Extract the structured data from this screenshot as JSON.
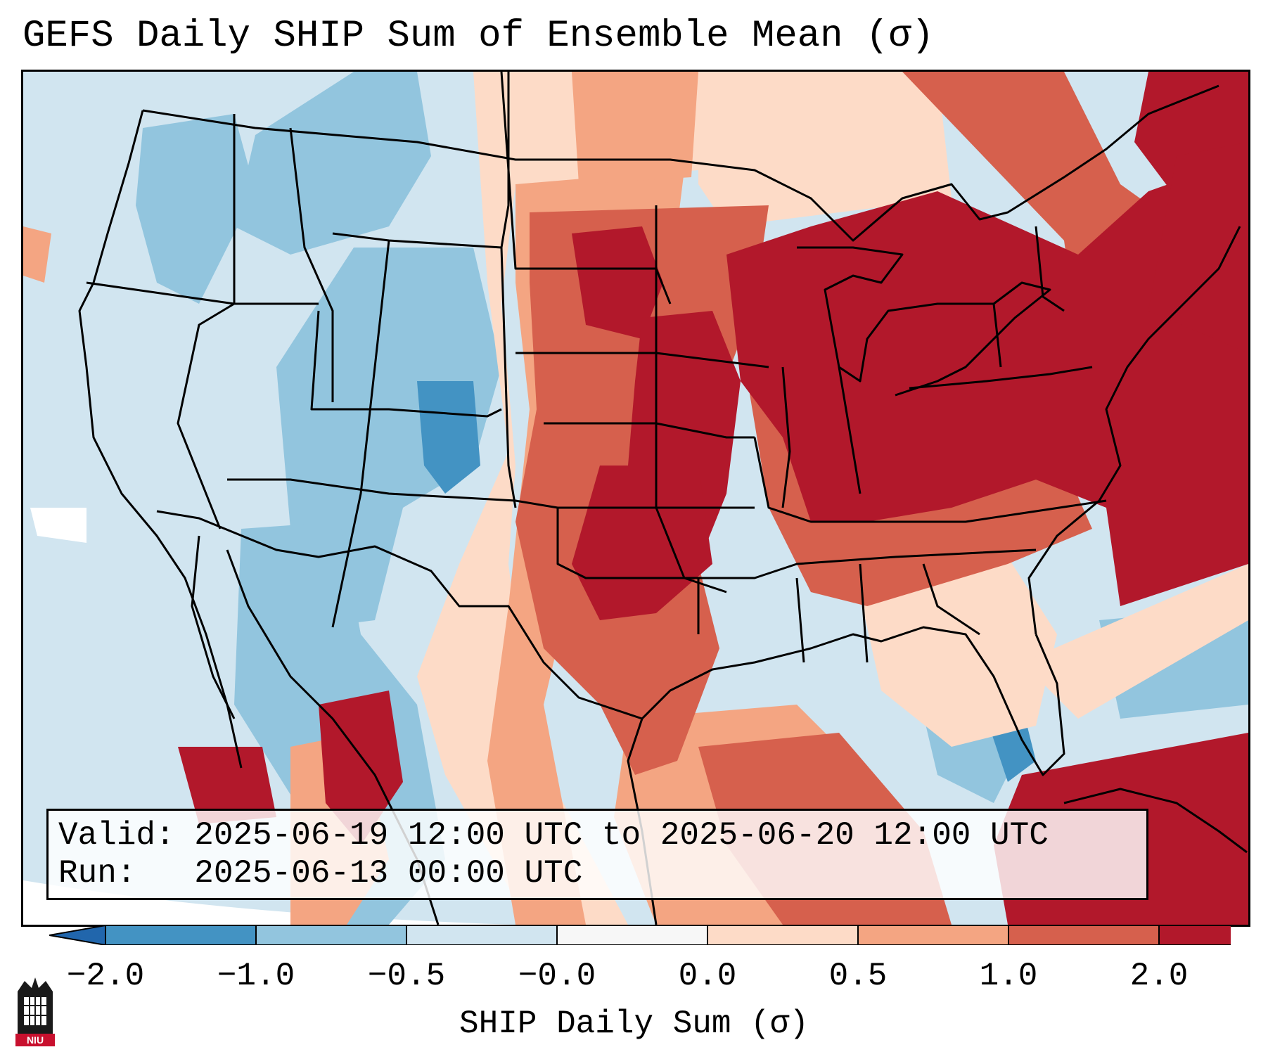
{
  "title": "GEFS Daily SHIP Sum of Ensemble Mean (σ)",
  "info": {
    "valid_line": "Valid: 2025-06-19 12:00 UTC to 2025-06-20 12:00 UTC",
    "run_line": "Run:   2025-06-13 00:00 UTC"
  },
  "colorbar": {
    "label": "SHIP Daily Sum (σ)",
    "ticks": [
      "−2.0",
      "−1.0",
      "−0.5",
      "−0.0",
      "0.0",
      "0.5",
      "1.0",
      "2.0"
    ],
    "colors": [
      "#4393c3",
      "#92c5de",
      "#d1e5f0",
      "#f7f7f7",
      "#fddbc7",
      "#f4a582",
      "#d6604d",
      "#b2182b"
    ],
    "extend_low": "#2166ac",
    "extend_high": "#67001f"
  },
  "logo": {
    "text": "NIU"
  },
  "map_palette": {
    "ocean_neutral": "#d1e5f0",
    "off_domain": "#ffffff",
    "state_lines": "#000000"
  }
}
